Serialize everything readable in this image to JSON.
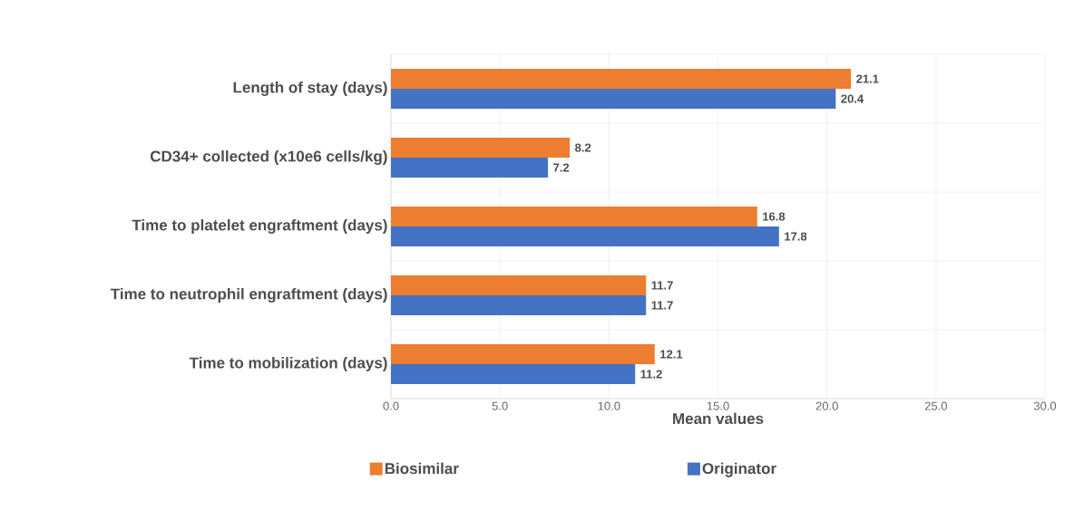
{
  "chart_data": {
    "type": "bar",
    "orientation": "horizontal",
    "categories": [
      "Length of stay (days)",
      "CD34+ collected (x10e6 cells/kg)",
      "Time to platelet engraftment (days)",
      "Time to neutrophil engraftment (days)",
      "Time to mobilization (days)"
    ],
    "series": [
      {
        "name": "Biosimilar",
        "color": "#ed7d31",
        "values": [
          21.1,
          8.2,
          16.8,
          11.7,
          12.1
        ]
      },
      {
        "name": "Originator",
        "color": "#4472c4",
        "values": [
          20.4,
          7.2,
          17.8,
          11.7,
          11.2
        ]
      }
    ],
    "xlabel": "Mean values",
    "xlim": [
      0,
      30
    ],
    "xticks": [
      {
        "value": 0,
        "label": "0.0"
      },
      {
        "value": 5,
        "label": "5.0"
      },
      {
        "value": 10,
        "label": "10.0"
      },
      {
        "value": 15,
        "label": "15.0"
      },
      {
        "value": 20,
        "label": "20.0"
      },
      {
        "value": 25,
        "label": "25.0"
      },
      {
        "value": 30,
        "label": "30.0"
      }
    ],
    "data_labels": true,
    "grid": true,
    "legend": "bottom"
  }
}
